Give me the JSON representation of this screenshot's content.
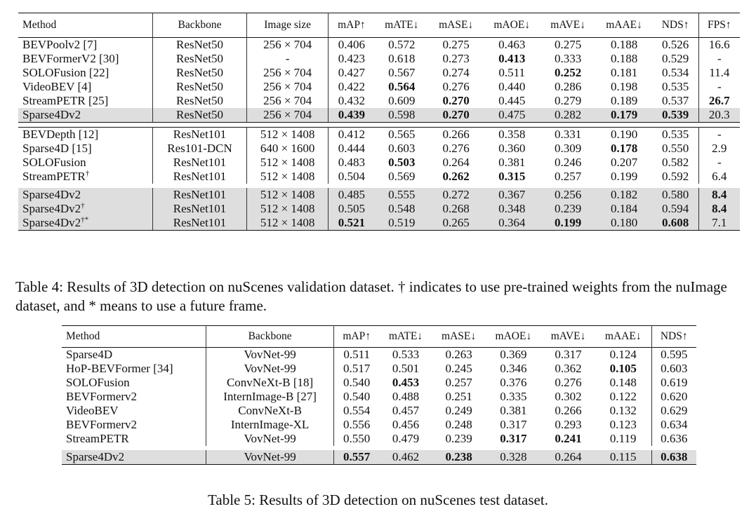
{
  "table4": {
    "headers": [
      "Method",
      "Backbone",
      "Image size",
      "mAP↑",
      "mATE↓",
      "mASE↓",
      "mAOE↓",
      "mAVE↓",
      "mAAE↓",
      "NDS↑",
      "FPS↑"
    ],
    "group1": [
      {
        "method": "BEVPoolv2 [7]",
        "sup": "",
        "cells": [
          "ResNet50",
          "256 × 704",
          "0.406",
          "0.572",
          "0.275",
          "0.463",
          "0.275",
          "0.188",
          "0.526",
          "16.6"
        ],
        "bold": []
      },
      {
        "method": "BEVFormerV2 [30]",
        "sup": "",
        "cells": [
          "ResNet50",
          "-",
          "0.423",
          "0.618",
          "0.273",
          "0.413",
          "0.333",
          "0.188",
          "0.529",
          "-"
        ],
        "bold": [
          5
        ]
      },
      {
        "method": "SOLOFusion [22]",
        "sup": "",
        "cells": [
          "ResNet50",
          "256 × 704",
          "0.427",
          "0.567",
          "0.274",
          "0.511",
          "0.252",
          "0.181",
          "0.534",
          "11.4"
        ],
        "bold": [
          6
        ]
      },
      {
        "method": "VideoBEV [4]",
        "sup": "",
        "cells": [
          "ResNet50",
          "256 × 704",
          "0.422",
          "0.564",
          "0.276",
          "0.440",
          "0.286",
          "0.198",
          "0.535",
          "-"
        ],
        "bold": [
          3
        ]
      },
      {
        "method": "StreamPETR [25]",
        "sup": "",
        "cells": [
          "ResNet50",
          "256 × 704",
          "0.432",
          "0.609",
          "0.270",
          "0.445",
          "0.279",
          "0.189",
          "0.537",
          "26.7"
        ],
        "bold": [
          4,
          9
        ]
      }
    ],
    "group1_ours": [
      {
        "method": "Sparse4Dv2",
        "sup": "",
        "cells": [
          "ResNet50",
          "256 × 704",
          "0.439",
          "0.598",
          "0.270",
          "0.475",
          "0.282",
          "0.179",
          "0.539",
          "20.3"
        ],
        "bold": [
          2,
          4,
          7,
          8
        ]
      }
    ],
    "group2": [
      {
        "method": "BEVDepth [12]",
        "sup": "",
        "cells": [
          "ResNet101",
          "512 × 1408",
          "0.412",
          "0.565",
          "0.266",
          "0.358",
          "0.331",
          "0.190",
          "0.535",
          "-"
        ],
        "bold": []
      },
      {
        "method": "Sparse4D [15]",
        "sup": "",
        "cells": [
          "Res101-DCN",
          "640 × 1600",
          "0.444",
          "0.603",
          "0.276",
          "0.360",
          "0.309",
          "0.178",
          "0.550",
          "2.9"
        ],
        "bold": [
          7
        ]
      },
      {
        "method": "SOLOFusion",
        "sup": "",
        "cells": [
          "ResNet101",
          "512 × 1408",
          "0.483",
          "0.503",
          "0.264",
          "0.381",
          "0.246",
          "0.207",
          "0.582",
          "-"
        ],
        "bold": [
          3
        ]
      },
      {
        "method": "StreamPETR",
        "sup": "†",
        "cells": [
          "ResNet101",
          "512 × 1408",
          "0.504",
          "0.569",
          "0.262",
          "0.315",
          "0.257",
          "0.199",
          "0.592",
          "6.4"
        ],
        "bold": [
          4,
          5
        ]
      }
    ],
    "group2_ours": [
      {
        "method": "Sparse4Dv2",
        "sup": "",
        "cells": [
          "ResNet101",
          "512 × 1408",
          "0.485",
          "0.555",
          "0.272",
          "0.367",
          "0.256",
          "0.182",
          "0.580",
          "8.4"
        ],
        "bold": [
          9
        ]
      },
      {
        "method": "Sparse4Dv2",
        "sup": "†",
        "cells": [
          "ResNet101",
          "512 × 1408",
          "0.505",
          "0.548",
          "0.268",
          "0.348",
          "0.239",
          "0.184",
          "0.594",
          "8.4"
        ],
        "bold": [
          9
        ]
      },
      {
        "method": "Sparse4Dv2",
        "sup": "†*",
        "cells": [
          "ResNet101",
          "512 × 1408",
          "0.521",
          "0.519",
          "0.265",
          "0.364",
          "0.199",
          "0.180",
          "0.608",
          "7.1"
        ],
        "bold": [
          2,
          6,
          8
        ]
      }
    ],
    "caption": "Table 4: Results of 3D detection on nuScenes validation dataset. † indicates to use pre-trained weights from the nuImage dataset, and * means to use a future frame."
  },
  "table5": {
    "headers": [
      "Method",
      "Backbone",
      "mAP↑",
      "mATE↓",
      "mASE↓",
      "mAOE↓",
      "mAVE↓",
      "mAAE↓",
      "NDS↑"
    ],
    "rows": [
      {
        "method": "Sparse4D",
        "cells": [
          "VovNet-99",
          "0.511",
          "0.533",
          "0.263",
          "0.369",
          "0.317",
          "0.124",
          "0.595"
        ],
        "bold": []
      },
      {
        "method": "HoP-BEVFormer [34]",
        "cells": [
          "VovNet-99",
          "0.517",
          "0.501",
          "0.245",
          "0.346",
          "0.362",
          "0.105",
          "0.603"
        ],
        "bold": [
          6
        ]
      },
      {
        "method": "SOLOFusion",
        "cells": [
          "ConvNeXt-B [18]",
          "0.540",
          "0.453",
          "0.257",
          "0.376",
          "0.276",
          "0.148",
          "0.619"
        ],
        "bold": [
          2
        ]
      },
      {
        "method": "BEVFormerv2",
        "cells": [
          "InternImage-B [27]",
          "0.540",
          "0.488",
          "0.251",
          "0.335",
          "0.302",
          "0.122",
          "0.620"
        ],
        "bold": []
      },
      {
        "method": "VideoBEV",
        "cells": [
          "ConvNeXt-B",
          "0.554",
          "0.457",
          "0.249",
          "0.381",
          "0.266",
          "0.132",
          "0.629"
        ],
        "bold": []
      },
      {
        "method": "BEVFormerv2",
        "cells": [
          "InternImage-XL",
          "0.556",
          "0.456",
          "0.248",
          "0.317",
          "0.293",
          "0.123",
          "0.634"
        ],
        "bold": []
      },
      {
        "method": "StreamPETR",
        "cells": [
          "VovNet-99",
          "0.550",
          "0.479",
          "0.239",
          "0.317",
          "0.241",
          "0.119",
          "0.636"
        ],
        "bold": [
          4,
          5
        ]
      }
    ],
    "ours": [
      {
        "method": "Sparse4Dv2",
        "cells": [
          "VovNet-99",
          "0.557",
          "0.462",
          "0.238",
          "0.328",
          "0.264",
          "0.115",
          "0.638"
        ],
        "bold": [
          1,
          3,
          7
        ]
      }
    ],
    "caption": "Table 5: Results of 3D detection on nuScenes test dataset."
  }
}
